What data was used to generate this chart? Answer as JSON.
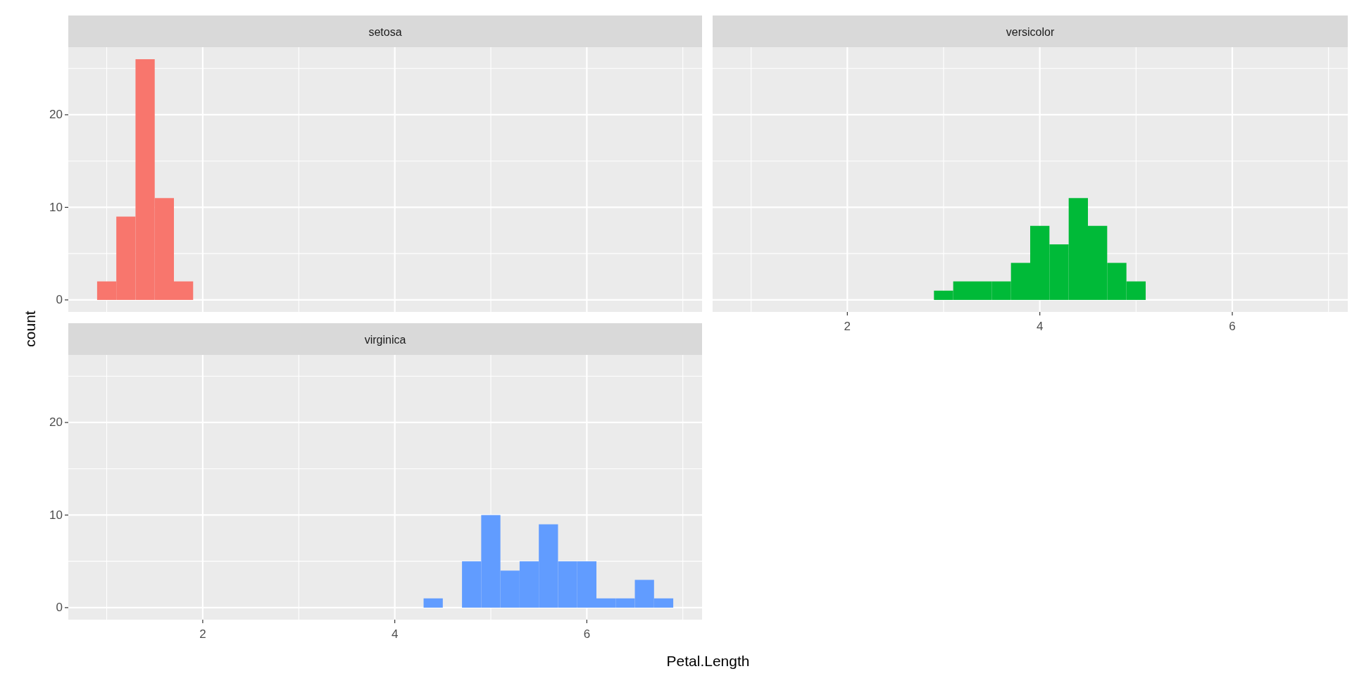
{
  "chart_data": [
    {
      "type": "histogram",
      "title": "setosa",
      "bins": [
        0.9,
        1.1,
        1.3,
        1.5,
        1.7,
        1.9
      ],
      "values": [
        2,
        9,
        26,
        11,
        2
      ],
      "color": "#f8766d",
      "xlim": [
        0.6,
        7.2
      ],
      "ylim": [
        -1.3,
        27.3
      ],
      "xticks": [
        {
          "value": 1,
          "label": null
        },
        2,
        {
          "value": 3,
          "label": null
        },
        4,
        {
          "value": 5,
          "label": null
        },
        6,
        {
          "value": 7,
          "label": null
        }
      ],
      "yticks": [
        0,
        {
          "value": 5,
          "label": null
        },
        10,
        {
          "value": 15,
          "label": null
        },
        20,
        {
          "value": 25,
          "label": null
        }
      ],
      "grid": true,
      "tick_labels": "y"
    },
    {
      "type": "histogram",
      "title": "versicolor",
      "bins": [
        2.9,
        3.1,
        3.3,
        3.5,
        3.7,
        3.9,
        4.1,
        4.3,
        4.5,
        4.7,
        4.9,
        5.1
      ],
      "values": [
        1,
        2,
        2,
        2,
        4,
        8,
        6,
        11,
        8,
        4,
        2
      ],
      "color": "#00ba38",
      "xlim": [
        0.6,
        7.2
      ],
      "ylim": [
        -1.3,
        27.3
      ],
      "xticks": [
        {
          "value": 1,
          "label": null
        },
        2,
        {
          "value": 3,
          "label": null
        },
        4,
        {
          "value": 5,
          "label": null
        },
        6,
        {
          "value": 7,
          "label": null
        }
      ],
      "yticks": [
        0,
        {
          "value": 5,
          "label": null
        },
        10,
        {
          "value": 15,
          "label": null
        },
        20,
        {
          "value": 25,
          "label": null
        }
      ],
      "grid": true,
      "tick_labels": "x"
    },
    {
      "type": "histogram",
      "title": "virginica",
      "xlabel": "Petal.Length",
      "ylabel": "count",
      "bins": [
        4.3,
        4.5,
        4.7,
        4.9,
        5.1,
        5.3,
        5.5,
        5.7,
        5.9,
        6.1,
        6.3,
        6.5,
        6.7,
        6.9
      ],
      "values": [
        1,
        0,
        5,
        10,
        4,
        5,
        9,
        5,
        5,
        1,
        1,
        3,
        1
      ],
      "color": "#619cff",
      "xlim": [
        0.6,
        7.2
      ],
      "ylim": [
        -1.3,
        27.3
      ],
      "xticks": [
        {
          "value": 1,
          "label": null
        },
        2,
        {
          "value": 3,
          "label": null
        },
        4,
        {
          "value": 5,
          "label": null
        },
        6,
        {
          "value": 7,
          "label": null
        }
      ],
      "yticks": [
        0,
        {
          "value": 5,
          "label": null
        },
        10,
        {
          "value": 15,
          "label": null
        },
        20,
        {
          "value": 25,
          "label": null
        }
      ],
      "grid": true
    }
  ]
}
